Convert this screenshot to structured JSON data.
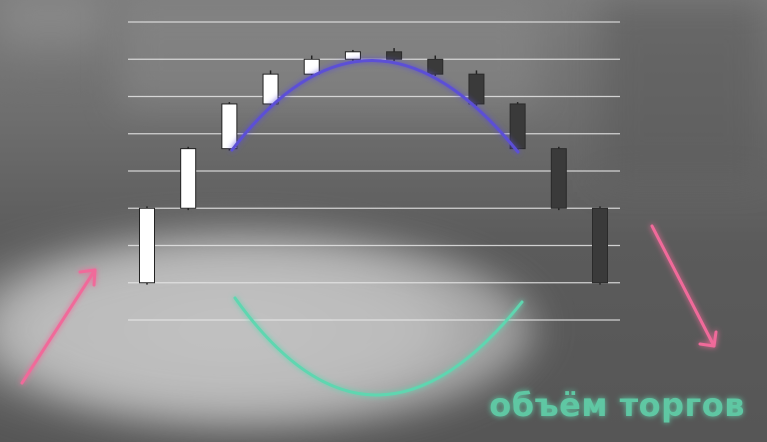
{
  "caption": "объём торгов",
  "colors": {
    "gridline": "#e6e6e6",
    "bull_candle": "#ffffff",
    "bear_candle": "#3a3a3a",
    "top_arc": "#5b4fd6",
    "bottom_arc": "#5fd6b0",
    "arrow_up": "#f06a9a",
    "arrow_down": "#f06a9a",
    "caption": "#5fc7a3"
  },
  "chart_data": {
    "type": "candlestick",
    "title": "",
    "xlabel": "",
    "ylabel": "",
    "grid": true,
    "ylim": [
      0,
      8
    ],
    "gridlines": [
      0,
      1,
      2,
      3,
      4,
      5,
      6,
      7,
      8
    ],
    "candles": [
      {
        "open": 1.0,
        "close": 3.0,
        "high": 3.05,
        "low": 0.95,
        "direction": "up"
      },
      {
        "open": 3.0,
        "close": 4.6,
        "high": 4.65,
        "low": 2.95,
        "direction": "up"
      },
      {
        "open": 4.6,
        "close": 5.8,
        "high": 5.85,
        "low": 4.55,
        "direction": "up"
      },
      {
        "open": 5.8,
        "close": 6.6,
        "high": 6.7,
        "low": 5.75,
        "direction": "up"
      },
      {
        "open": 6.6,
        "close": 7.0,
        "high": 7.1,
        "low": 6.55,
        "direction": "up"
      },
      {
        "open": 7.0,
        "close": 7.2,
        "high": 7.25,
        "low": 6.95,
        "direction": "up"
      },
      {
        "open": 7.2,
        "close": 7.0,
        "high": 7.3,
        "low": 6.95,
        "direction": "down"
      },
      {
        "open": 7.0,
        "close": 6.6,
        "high": 7.1,
        "low": 6.55,
        "direction": "down"
      },
      {
        "open": 6.6,
        "close": 5.8,
        "high": 6.7,
        "low": 5.75,
        "direction": "down"
      },
      {
        "open": 5.8,
        "close": 4.6,
        "high": 5.85,
        "low": 4.55,
        "direction": "down"
      },
      {
        "open": 4.6,
        "close": 3.0,
        "high": 4.65,
        "low": 2.95,
        "direction": "down"
      },
      {
        "open": 3.0,
        "close": 1.0,
        "high": 3.05,
        "low": 0.95,
        "direction": "down"
      }
    ]
  }
}
